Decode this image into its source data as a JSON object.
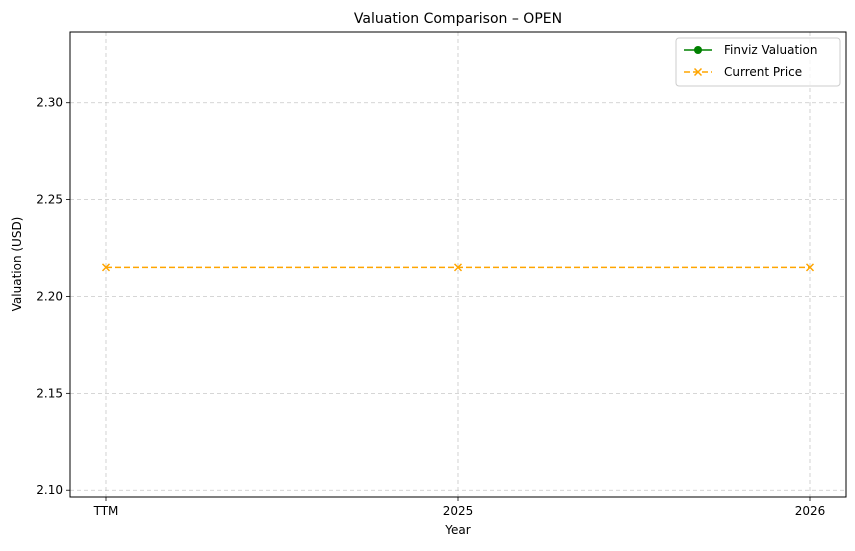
{
  "chart_data": {
    "type": "line",
    "title": "Valuation Comparison – OPEN",
    "xlabel": "Year",
    "ylabel": "Valuation (USD)",
    "categories": [
      "TTM",
      "2025",
      "2026"
    ],
    "ylim": [
      2.0965,
      2.3365
    ],
    "yticks": [
      2.1,
      2.15,
      2.2,
      2.25,
      2.3
    ],
    "ytick_labels": [
      "2.10",
      "2.15",
      "2.20",
      "2.25",
      "2.30"
    ],
    "grid": true,
    "legend_position": "top-right",
    "series": [
      {
        "name": "Finviz Valuation",
        "values": [
          null,
          null,
          null
        ],
        "color": "#008000",
        "linestyle": "solid",
        "marker": "circle"
      },
      {
        "name": "Current Price",
        "values": [
          2.215,
          2.215,
          2.215
        ],
        "color": "#ffa500",
        "linestyle": "dashed",
        "marker": "x"
      }
    ]
  }
}
